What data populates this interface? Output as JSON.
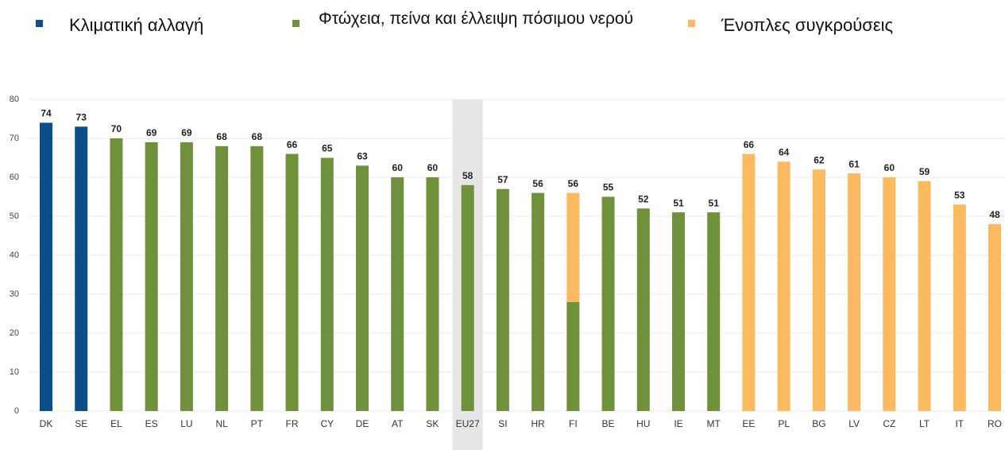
{
  "chart_data": {
    "type": "stacked_bar",
    "categories": [
      "DK",
      "SE",
      "EL",
      "ES",
      "LU",
      "NL",
      "PT",
      "FR",
      "CY",
      "DE",
      "AT",
      "SK",
      "EU27",
      "SI",
      "HR",
      "FI",
      "BE",
      "HU",
      "IE",
      "MT",
      "EE",
      "PL",
      "BG",
      "LV",
      "CZ",
      "LT",
      "IT",
      "RO"
    ],
    "series": [
      {
        "name": "Κλιματική αλλαγή",
        "color": "#0b4f8a",
        "values": [
          74,
          73,
          null,
          null,
          null,
          null,
          null,
          null,
          null,
          null,
          null,
          null,
          null,
          null,
          null,
          null,
          null,
          null,
          null,
          null,
          null,
          null,
          null,
          null,
          null,
          null,
          null,
          null
        ]
      },
      {
        "name": "Φτώχεια, πείνα και έλλειψη πόσιμου νερού",
        "color": "#70913b",
        "values": [
          null,
          null,
          70,
          69,
          69,
          68,
          68,
          66,
          65,
          63,
          60,
          60,
          58,
          57,
          56,
          28,
          55,
          52,
          51,
          51,
          null,
          null,
          null,
          null,
          null,
          null,
          null,
          null
        ]
      },
      {
        "name": "Ένοπλες συγκρούσεις",
        "color": "#fbb960",
        "values": [
          null,
          null,
          null,
          null,
          null,
          null,
          null,
          null,
          null,
          null,
          null,
          null,
          null,
          null,
          null,
          28,
          null,
          null,
          null,
          null,
          66,
          64,
          62,
          61,
          60,
          59,
          53,
          48
        ]
      }
    ],
    "totals": [
      74,
      73,
      70,
      69,
      69,
      68,
      68,
      66,
      65,
      63,
      60,
      60,
      58,
      57,
      56,
      56,
      55,
      52,
      51,
      51,
      66,
      64,
      62,
      61,
      60,
      59,
      53,
      48
    ],
    "highlight": "EU27",
    "ylim": [
      0,
      80
    ],
    "yticks": [
      0,
      10,
      20,
      30,
      40,
      50,
      60,
      70,
      80
    ],
    "grid": true
  }
}
